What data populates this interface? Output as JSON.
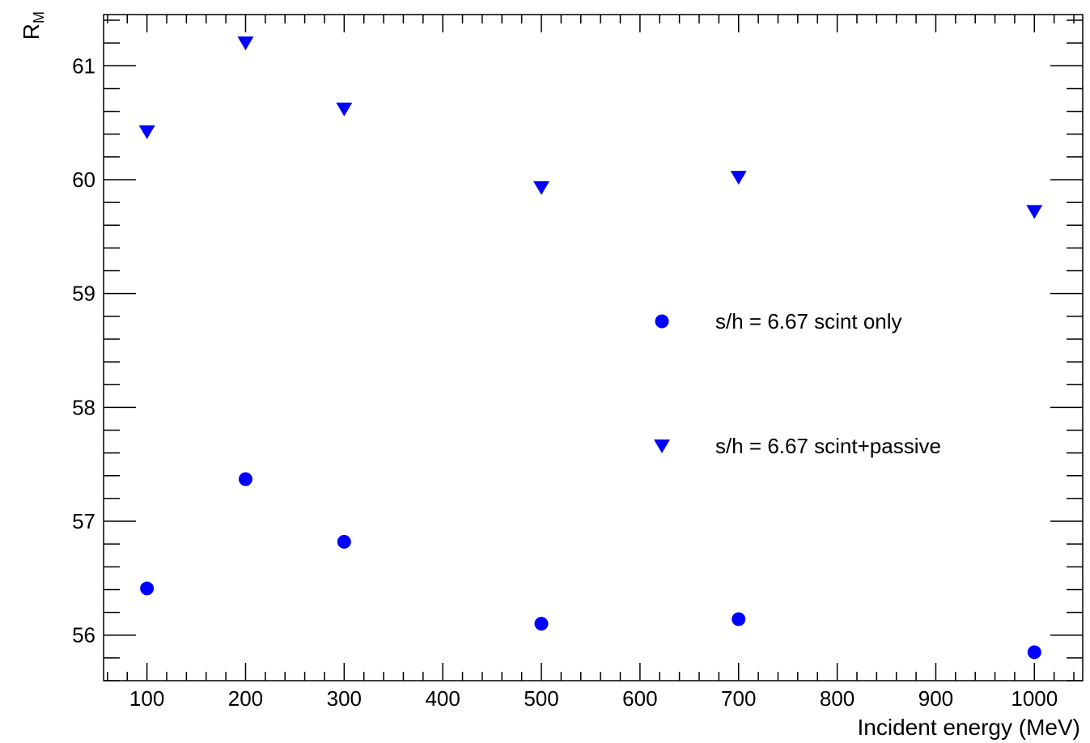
{
  "chart_data": {
    "type": "scatter",
    "xlabel": "Incident energy (MeV)",
    "ylabel": {
      "main": "R",
      "sub": "M"
    },
    "xlim": [
      56,
      1049
    ],
    "ylim": [
      55.6,
      61.45
    ],
    "x_ticks": [
      100,
      200,
      300,
      400,
      500,
      600,
      700,
      800,
      900,
      1000
    ],
    "y_ticks": [
      56,
      57,
      58,
      59,
      60,
      61
    ],
    "grid": false,
    "legend_position": "center-right",
    "series": [
      {
        "name": "s/h = 6.67 scint only",
        "marker": "circle",
        "color": "#0000ff",
        "x": [
          100,
          200,
          300,
          500,
          700,
          1000
        ],
        "y": [
          56.41,
          57.37,
          56.82,
          56.1,
          56.14,
          55.85
        ]
      },
      {
        "name": "s/h = 6.67 scint+passive",
        "marker": "triangle-down",
        "color": "#0000ff",
        "x": [
          100,
          200,
          300,
          500,
          700,
          1000
        ],
        "y": [
          60.42,
          61.2,
          60.62,
          59.93,
          60.02,
          59.72
        ]
      }
    ]
  }
}
